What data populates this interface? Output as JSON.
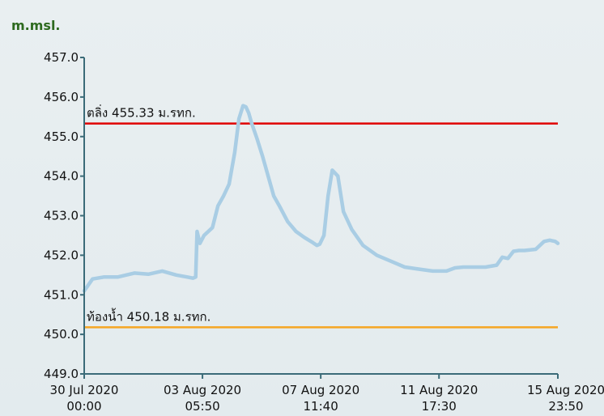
{
  "chart_data": {
    "type": "line",
    "title": "",
    "ylabel": "m.msl.",
    "xlabel": "",
    "ylim": [
      449,
      457
    ],
    "yticks": [
      "457.0",
      "456.0",
      "455.0",
      "454.0",
      "453.0",
      "452.0",
      "451.0",
      "450.0",
      "449.0"
    ],
    "xticks": [
      {
        "date": "30 Jul 2020",
        "time": "00:00",
        "day": 0
      },
      {
        "date": "03 Aug 2020",
        "time": "05:50",
        "day": 4.243
      },
      {
        "date": "07 Aug 2020",
        "time": "11:40",
        "day": 8.486
      },
      {
        "date": "11 Aug 2020",
        "time": "17:30",
        "day": 12.729
      },
      {
        "date": "15 Aug 2020",
        "time": "23:50",
        "day": 16.993
      }
    ],
    "xlim": [
      0,
      16.993
    ],
    "reference_lines": [
      {
        "label": "ตลิ่ง 455.33 ม.รทก.",
        "value": 455.33,
        "color": "#e00000"
      },
      {
        "label": "ท้องน้ำ 450.18 ม.รทก.",
        "value": 450.18,
        "color": "#f5a623"
      }
    ],
    "series": [
      {
        "color": "#a9cde4",
        "x": [
          0,
          0.3,
          0.7,
          1.2,
          1.8,
          2.3,
          2.8,
          3.3,
          3.7,
          3.9,
          4.0,
          4.05,
          4.15,
          4.3,
          4.6,
          4.8,
          5.0,
          5.2,
          5.4,
          5.55,
          5.7,
          5.8,
          5.9,
          6.0,
          6.2,
          6.4,
          6.6,
          6.8,
          7.0,
          7.3,
          7.6,
          7.9,
          8.2,
          8.35,
          8.45,
          8.6,
          8.75,
          8.9,
          9.1,
          9.3,
          9.6,
          10.0,
          10.5,
          11.0,
          11.5,
          12.0,
          12.5,
          13.0,
          13.3,
          13.6,
          14.0,
          14.4,
          14.8,
          15.0,
          15.2,
          15.4,
          15.6,
          15.8,
          16.2,
          16.5,
          16.7,
          16.9,
          16.993
        ],
        "values": [
          451.1,
          451.4,
          451.45,
          451.45,
          451.55,
          451.52,
          451.6,
          451.5,
          451.45,
          451.42,
          451.45,
          452.6,
          452.3,
          452.5,
          452.7,
          453.25,
          453.5,
          453.8,
          454.6,
          455.45,
          455.78,
          455.75,
          455.6,
          455.35,
          454.95,
          454.5,
          454.0,
          453.5,
          453.25,
          452.85,
          452.6,
          452.45,
          452.32,
          452.25,
          452.28,
          452.5,
          453.5,
          454.15,
          454.0,
          453.1,
          452.65,
          452.25,
          452.0,
          451.85,
          451.7,
          451.65,
          451.6,
          451.6,
          451.68,
          451.7,
          451.7,
          451.7,
          451.75,
          451.95,
          451.92,
          452.1,
          452.12,
          452.12,
          452.15,
          452.35,
          452.38,
          452.35,
          452.3
        ]
      }
    ]
  }
}
